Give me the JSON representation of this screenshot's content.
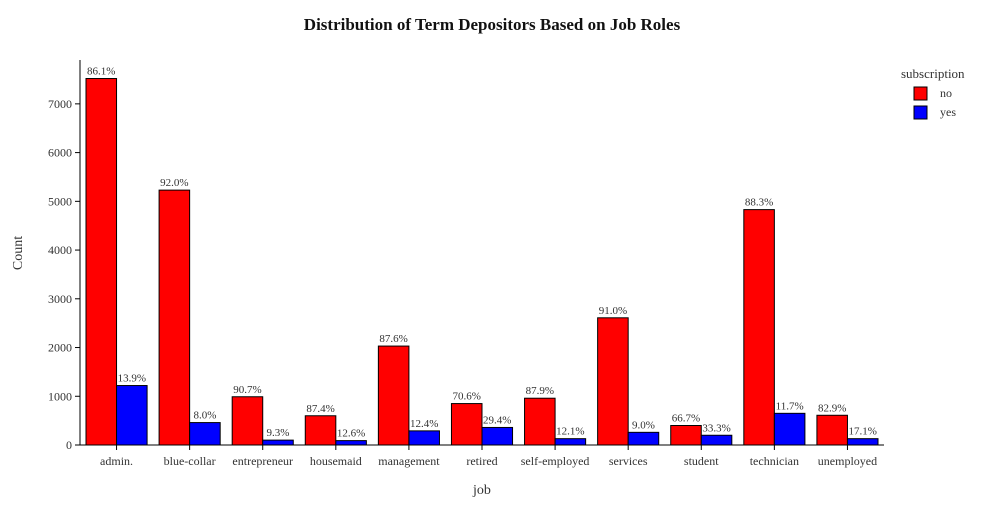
{
  "chart_data": {
    "type": "bar",
    "title": "Distribution of Term Depositors Based on Job Roles",
    "xlabel": "job",
    "ylabel": "Count",
    "ylim": [
      0,
      7900
    ],
    "yticks": [
      0,
      1000,
      2000,
      3000,
      4000,
      5000,
      6000,
      7000
    ],
    "grid": false,
    "legend": {
      "title": "subscription",
      "position": "top-right"
    },
    "categories": [
      "admin.",
      "blue-collar",
      "entrepreneur",
      "housemaid",
      "management",
      "retired",
      "self-employed",
      "services",
      "student",
      "technician",
      "unemployed"
    ],
    "series": [
      {
        "name": "no",
        "color": "#ff0000",
        "values": [
          7520,
          5230,
          990,
          600,
          2030,
          850,
          960,
          2610,
          400,
          4830,
          610
        ],
        "labels": [
          "86.1%",
          "92.0%",
          "90.7%",
          "87.4%",
          "87.6%",
          "70.6%",
          "87.9%",
          "91.0%",
          "66.7%",
          "88.3%",
          "82.9%"
        ]
      },
      {
        "name": "yes",
        "color": "#0000ff",
        "values": [
          1220,
          460,
          100,
          90,
          290,
          360,
          130,
          260,
          200,
          650,
          130
        ],
        "labels": [
          "13.9%",
          "8.0%",
          "9.3%",
          "12.6%",
          "12.4%",
          "29.4%",
          "12.1%",
          "9.0%",
          "33.3%",
          "11.7%",
          "17.1%"
        ]
      }
    ]
  }
}
